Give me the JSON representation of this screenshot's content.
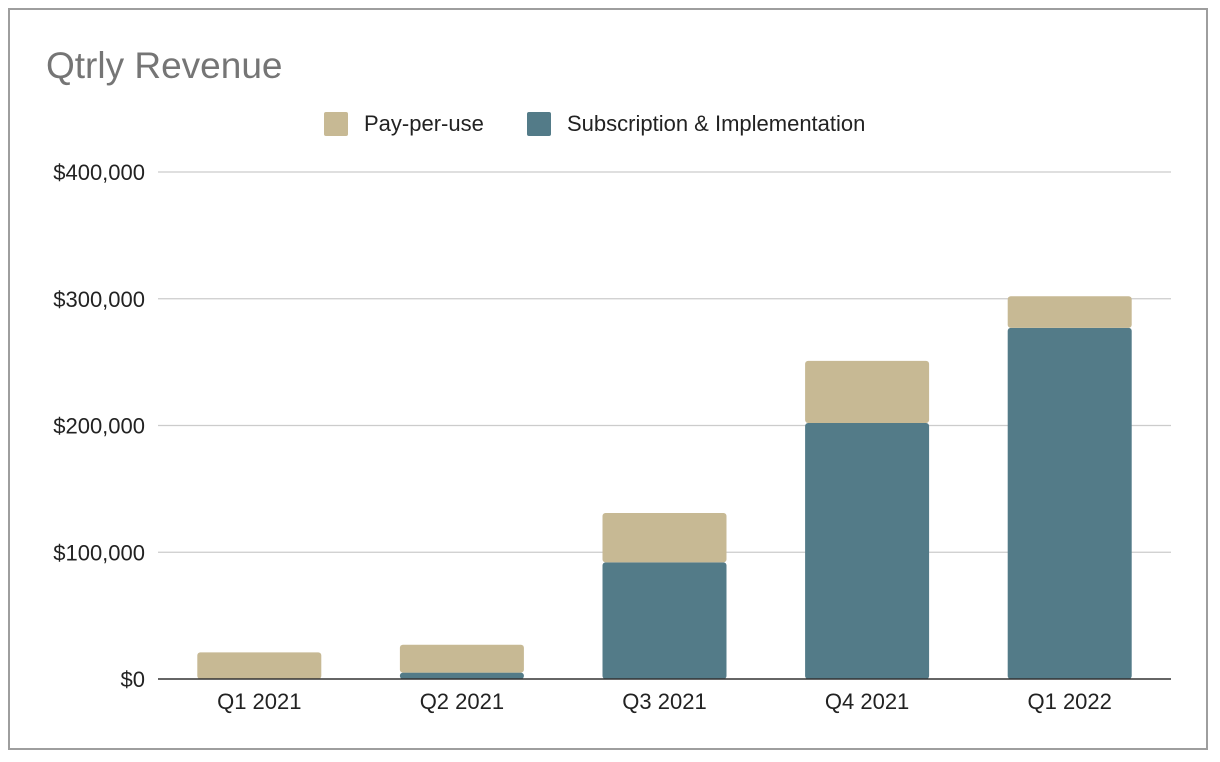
{
  "chart_data": {
    "type": "bar",
    "stacked": true,
    "title": "Qtrly Revenue",
    "xlabel": "",
    "ylabel": "",
    "categories": [
      "Q1 2021",
      "Q2 2021",
      "Q3 2021",
      "Q4 2021",
      "Q1 2022"
    ],
    "series": [
      {
        "name": "Subscription & Implementation",
        "color": "#537b88",
        "values": [
          0,
          5000,
          92000,
          202000,
          277000
        ]
      },
      {
        "name": "Pay-per-use",
        "color": "#c7b994",
        "values": [
          21000,
          22000,
          39000,
          49000,
          25000
        ]
      }
    ],
    "legend_order": [
      1,
      0
    ],
    "legend_position": "top-center",
    "ylim": [
      0,
      400000
    ],
    "yticks": [
      0,
      100000,
      200000,
      300000,
      400000
    ],
    "ytick_labels": [
      "$0",
      "$100,000",
      "$200,000",
      "$300,000",
      "$400,000"
    ],
    "grid": true
  }
}
